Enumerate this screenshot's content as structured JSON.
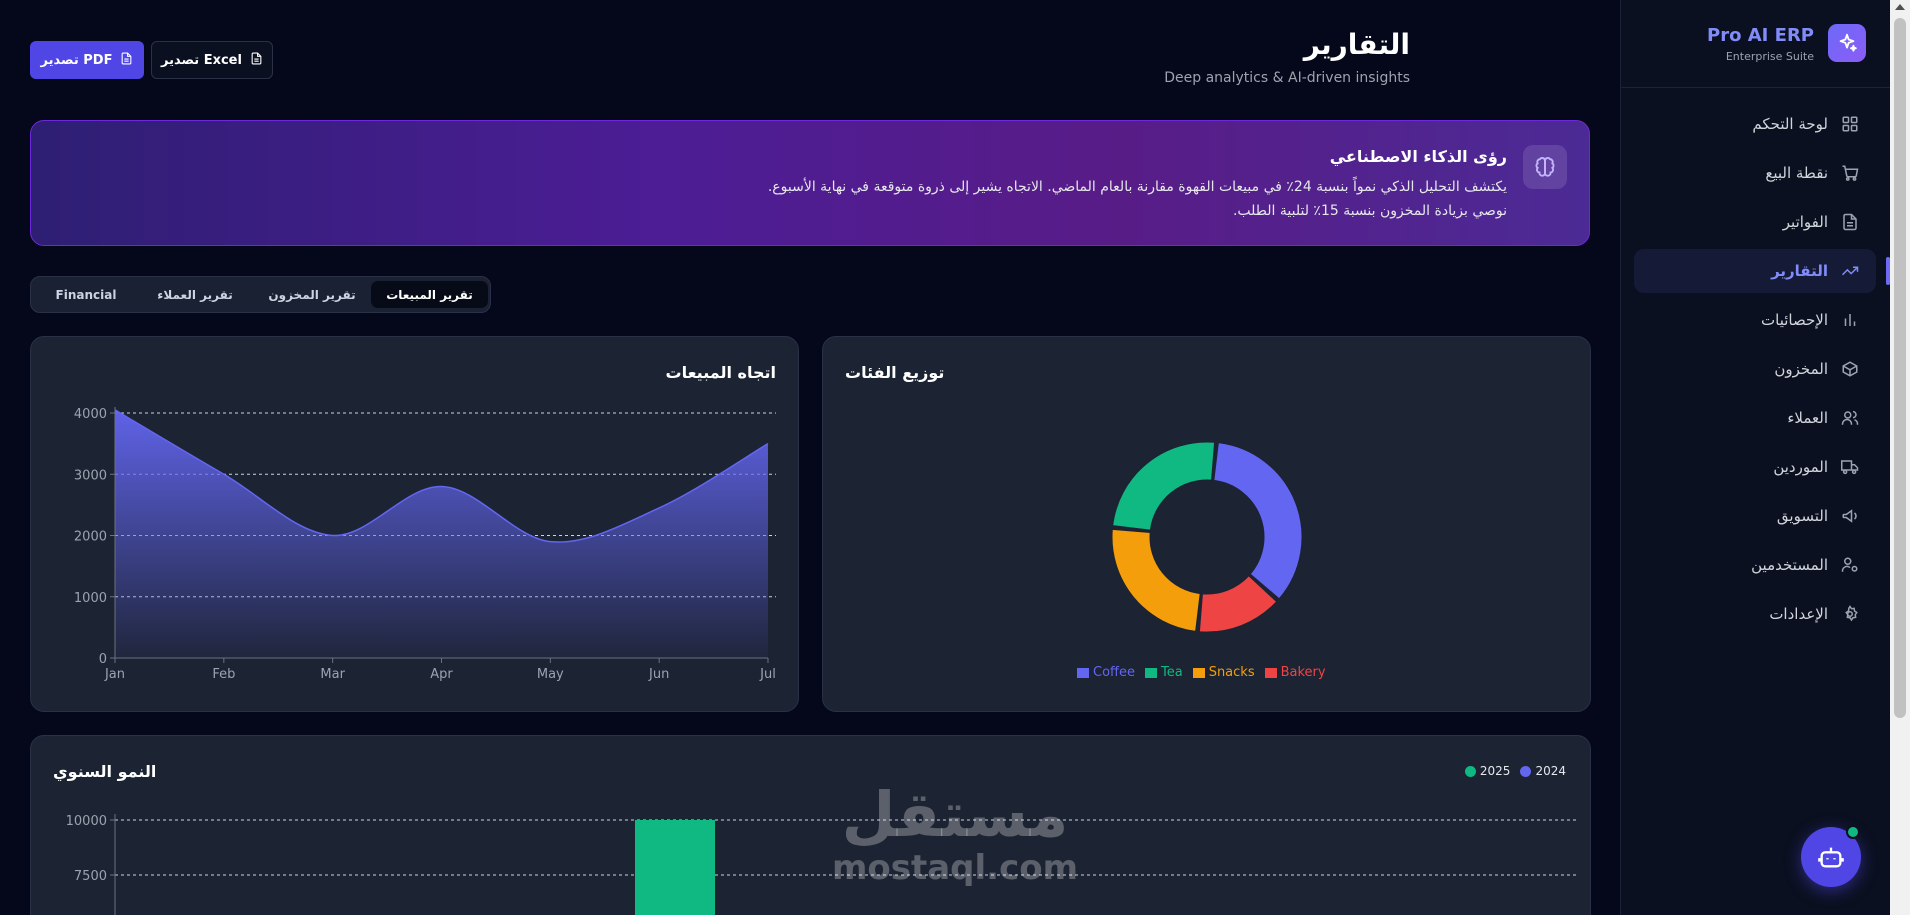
{
  "brand": {
    "name": "Pro AI ERP",
    "subtitle": "Enterprise Suite"
  },
  "sidebar": {
    "items": [
      {
        "label": "لوحة التحكم",
        "icon": "dashboard-icon",
        "active": false
      },
      {
        "label": "نقطة البيع",
        "icon": "cart-icon",
        "active": false
      },
      {
        "label": "الفواتير",
        "icon": "file-icon",
        "active": false
      },
      {
        "label": "التقارير",
        "icon": "trending-up-icon",
        "active": true
      },
      {
        "label": "الإحصائيات",
        "icon": "bar-chart-icon",
        "active": false
      },
      {
        "label": "المخزون",
        "icon": "box-icon",
        "active": false
      },
      {
        "label": "العملاء",
        "icon": "users-icon",
        "active": false
      },
      {
        "label": "الموردين",
        "icon": "truck-icon",
        "active": false
      },
      {
        "label": "التسويق",
        "icon": "megaphone-icon",
        "active": false
      },
      {
        "label": "المستخدمين",
        "icon": "user-cog-icon",
        "active": false
      },
      {
        "label": "الإعدادات",
        "icon": "gear-icon",
        "active": false
      }
    ]
  },
  "header": {
    "title": "التقارير",
    "subtitle": "Deep analytics & AI-driven insights",
    "export_pdf": "تصدير PDF",
    "export_excel": "تصدير Excel"
  },
  "ai_banner": {
    "title": "رؤى الذكاء الاصطناعي",
    "text": "يكتشف التحليل الذكي نمواً بنسبة 24٪ في مبيعات القهوة مقارنة بالعام الماضي. الاتجاه يشير إلى ذروة متوقعة في نهاية الأسبوع. نوصي بزيادة المخزون بنسبة 15٪ لتلبية الطلب."
  },
  "tabs": [
    {
      "label": "تقرير المبيعات",
      "active": true
    },
    {
      "label": "تقرير المخزون",
      "active": false
    },
    {
      "label": "تقرير العملاء",
      "active": false
    },
    {
      "label": "Financial",
      "active": false
    }
  ],
  "colors": {
    "accent": "#6366f1",
    "coffee": "#6366f1",
    "tea": "#10b981",
    "snacks": "#f59e0b",
    "bakery": "#ef4444"
  },
  "watermark": {
    "ar": "مستقل",
    "en": "mostaql.com"
  },
  "chart_data": [
    {
      "type": "area",
      "title": "اتجاه المبيعات",
      "categories": [
        "Jan",
        "Feb",
        "Mar",
        "Apr",
        "May",
        "Jun",
        "Jul"
      ],
      "values": [
        4050,
        3000,
        2000,
        2800,
        1900,
        2450,
        3500
      ],
      "ylim": [
        0,
        4000
      ],
      "yticks": [
        0,
        1000,
        2000,
        3000,
        4000
      ],
      "grid": true
    },
    {
      "type": "pie",
      "title": "توزيع الفئات",
      "labels": [
        "Coffee",
        "Tea",
        "Snacks",
        "Bakery"
      ],
      "values": [
        35,
        25,
        25,
        15
      ],
      "legend": "bottom"
    },
    {
      "type": "bar",
      "title": "النمو السنوي",
      "series": [
        {
          "name": "2024",
          "values": [
            0
          ]
        },
        {
          "name": "2025",
          "values": [
            10000
          ]
        }
      ],
      "ylim": [
        0,
        10000
      ],
      "yticks": [
        7500,
        10000
      ],
      "legend": "top-right",
      "grid": true
    }
  ]
}
